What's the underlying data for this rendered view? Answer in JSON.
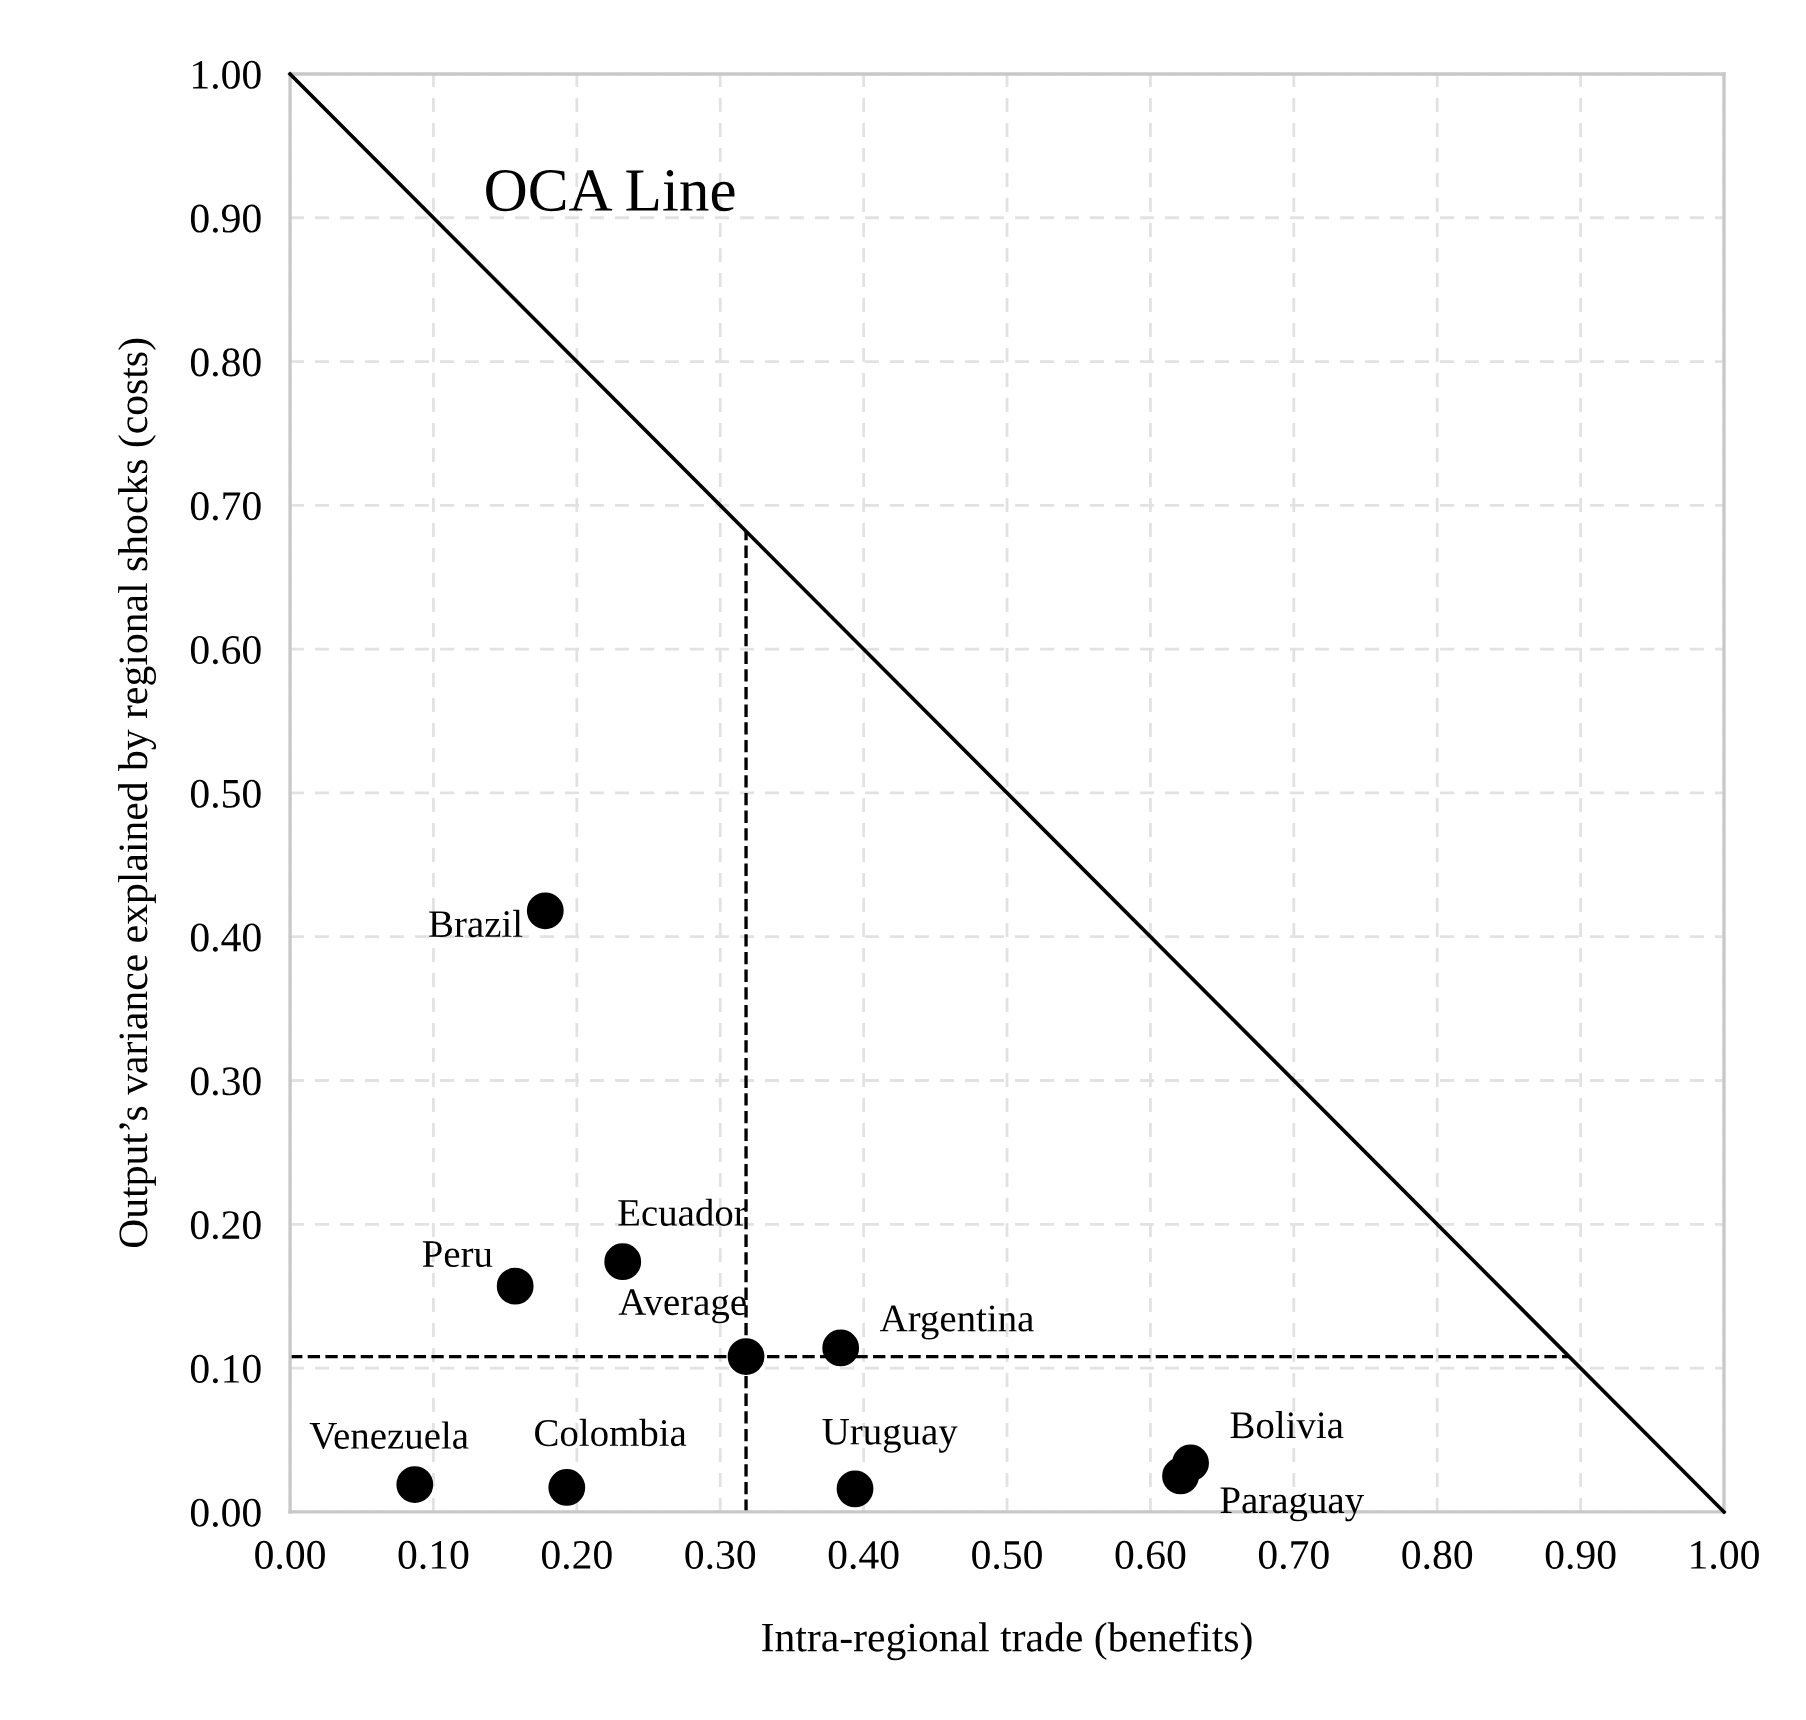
{
  "chart_data": {
    "type": "scatter",
    "xlabel": "Intra-regional trade (benefits)",
    "ylabel": "Output’s variance explained by regional shocks (costs)",
    "annotations": [
      "OCA Line"
    ],
    "xlim": [
      0,
      1
    ],
    "ylim": [
      0,
      1
    ],
    "xticks": [
      {
        "value": 0,
        "label": "0.00"
      },
      {
        "value": 0.1,
        "label": "0.10"
      },
      {
        "value": 0.2,
        "label": "0.20"
      },
      {
        "value": 0.3,
        "label": "0.30"
      },
      {
        "value": 0.4,
        "label": "0.40"
      },
      {
        "value": 0.5,
        "label": "0.50"
      },
      {
        "value": 0.6,
        "label": "0.60"
      },
      {
        "value": 0.7,
        "label": "0.70"
      },
      {
        "value": 0.8,
        "label": "0.80"
      },
      {
        "value": 0.9,
        "label": "0.90"
      },
      {
        "value": 1,
        "label": "1.00"
      }
    ],
    "yticks": [
      {
        "value": 0,
        "label": "0.00"
      },
      {
        "value": 0.1,
        "label": "0.10"
      },
      {
        "value": 0.2,
        "label": "0.20"
      },
      {
        "value": 0.3,
        "label": "0.30"
      },
      {
        "value": 0.4,
        "label": "0.40"
      },
      {
        "value": 0.5,
        "label": "0.50"
      },
      {
        "value": 0.6,
        "label": "0.60"
      },
      {
        "value": 0.7,
        "label": "0.70"
      },
      {
        "value": 0.8,
        "label": "0.80"
      },
      {
        "value": 0.9,
        "label": "0.90"
      },
      {
        "value": 1,
        "label": "1.00"
      }
    ],
    "grid": true,
    "marker": "circle",
    "ref_lines": [
      {
        "axis": "x",
        "value": 0.318,
        "color": "#000000",
        "line_style": "dashed"
      },
      {
        "axis": "y",
        "value": 0.108,
        "color": "#000000",
        "line_style": "dashed"
      }
    ],
    "series": [
      {
        "type": "line",
        "color": "#000000",
        "x": [
          0,
          1
        ],
        "values": [
          1,
          0
        ],
        "marker": "none",
        "line_style": "solid"
      },
      {
        "name": "Brazil",
        "color": "#000000",
        "x": [
          0.178
        ],
        "values": [
          0.418
        ]
      },
      {
        "name": "Peru",
        "color": "#000000",
        "x": [
          0.157
        ],
        "values": [
          0.157
        ]
      },
      {
        "name": "Ecuador",
        "color": "#000000",
        "x": [
          0.232
        ],
        "values": [
          0.174
        ]
      },
      {
        "name": "Average",
        "color": "#000000",
        "x": [
          0.318
        ],
        "values": [
          0.108
        ]
      },
      {
        "name": "Argentina",
        "color": "#000000",
        "x": [
          0.384
        ],
        "values": [
          0.114
        ]
      },
      {
        "name": "Venezuela",
        "color": "#000000",
        "x": [
          0.087
        ],
        "values": [
          0.019
        ]
      },
      {
        "name": "Colombia",
        "color": "#000000",
        "x": [
          0.193
        ],
        "values": [
          0.017
        ]
      },
      {
        "name": "Uruguay",
        "color": "#000000",
        "x": [
          0.394
        ],
        "values": [
          0.016
        ]
      },
      {
        "name": "Bolivia",
        "color": "#000000",
        "x": [
          0.628
        ],
        "values": [
          0.034
        ]
      },
      {
        "name": "Paraguay",
        "color": "#000000",
        "x": [
          0.621
        ],
        "values": [
          0.025
        ]
      }
    ]
  }
}
